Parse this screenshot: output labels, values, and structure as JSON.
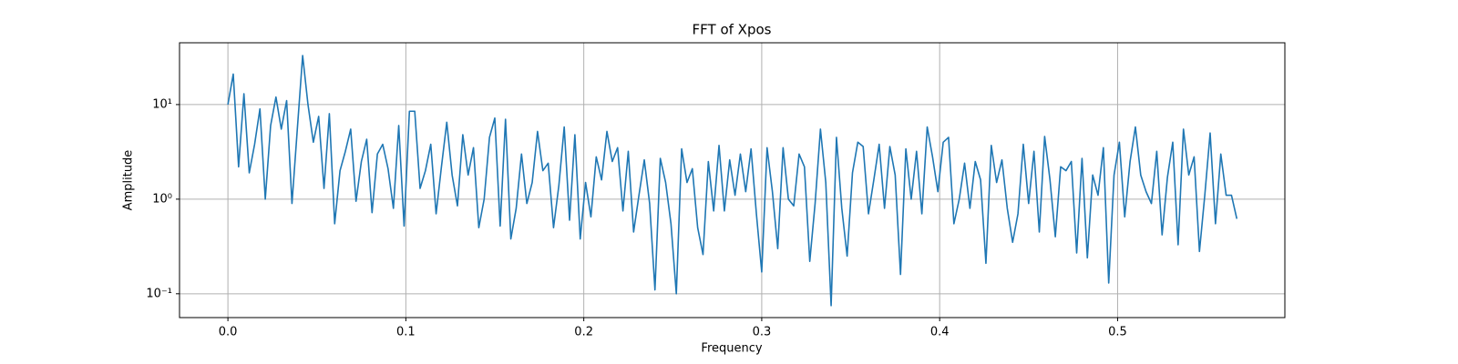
{
  "chart_data": {
    "type": "line",
    "title": "FFT of Xpos",
    "xlabel": "Frequency",
    "ylabel": "Amplitude",
    "color": "#1f77b4",
    "yscale": "log",
    "grid": true,
    "xlim": [
      -0.0272,
      0.594
    ],
    "ylim": [
      0.056,
      45
    ],
    "xticks": [
      {
        "value": 0,
        "label": "0.0"
      },
      0.1,
      0.2,
      0.3,
      0.4,
      0.5
    ],
    "yticks": [
      {
        "value": 0.1,
        "label": "10⁻¹"
      },
      {
        "value": 1,
        "label": "10⁰"
      },
      {
        "value": 10,
        "label": "10¹"
      }
    ],
    "x": [
      0,
      0.003,
      0.006,
      0.009,
      0.012,
      0.015,
      0.018,
      0.021,
      0.024,
      0.027,
      0.03,
      0.033,
      0.036,
      0.039,
      0.042,
      0.045,
      0.048,
      0.051,
      0.054,
      0.057,
      0.06,
      0.063,
      0.066,
      0.069,
      0.072,
      0.075,
      0.078,
      0.081,
      0.084,
      0.087,
      0.09,
      0.093,
      0.096,
      0.099,
      0.102,
      0.105,
      0.108,
      0.111,
      0.114,
      0.117,
      0.12,
      0.123,
      0.126,
      0.129,
      0.132,
      0.135,
      0.138,
      0.141,
      0.144,
      0.147,
      0.15,
      0.153,
      0.156,
      0.159,
      0.162,
      0.165,
      0.168,
      0.171,
      0.174,
      0.177,
      0.18,
      0.183,
      0.186,
      0.189,
      0.192,
      0.195,
      0.198,
      0.201,
      0.204,
      0.207,
      0.21,
      0.213,
      0.216,
      0.219,
      0.222,
      0.225,
      0.228,
      0.231,
      0.234,
      0.237,
      0.24,
      0.243,
      0.246,
      0.249,
      0.252,
      0.255,
      0.258,
      0.261,
      0.264,
      0.267,
      0.27,
      0.273,
      0.276,
      0.279,
      0.282,
      0.285,
      0.288,
      0.291,
      0.294,
      0.297,
      0.3,
      0.303,
      0.306,
      0.309,
      0.312,
      0.315,
      0.318,
      0.321,
      0.324,
      0.327,
      0.33,
      0.333,
      0.336,
      0.339,
      0.342,
      0.345,
      0.348,
      0.351,
      0.354,
      0.357,
      0.36,
      0.363,
      0.366,
      0.369,
      0.372,
      0.375,
      0.378,
      0.381,
      0.384,
      0.387,
      0.39,
      0.393,
      0.396,
      0.399,
      0.402,
      0.405,
      0.408,
      0.411,
      0.414,
      0.417,
      0.42,
      0.423,
      0.426,
      0.429,
      0.432,
      0.435,
      0.438,
      0.441,
      0.444,
      0.447,
      0.45,
      0.453,
      0.456,
      0.459,
      0.462,
      0.465,
      0.468,
      0.471,
      0.474,
      0.477,
      0.48,
      0.483,
      0.486,
      0.489,
      0.492,
      0.495,
      0.498,
      0.501,
      0.504,
      0.507,
      0.51,
      0.513,
      0.516,
      0.519,
      0.522,
      0.525,
      0.528,
      0.531,
      0.534,
      0.537,
      0.54,
      0.543,
      0.546,
      0.549,
      0.552,
      0.555,
      0.558,
      0.561,
      0.564,
      0.567
    ],
    "values": [
      10,
      21,
      2.2,
      13,
      1.9,
      3.8,
      9,
      1,
      6,
      12,
      5.5,
      11,
      0.9,
      5.5,
      33,
      10,
      4,
      7.5,
      1.3,
      8,
      0.55,
      2,
      3.2,
      5.5,
      0.95,
      2.5,
      4.3,
      0.72,
      3,
      3.8,
      2.1,
      0.8,
      6,
      0.52,
      8.5,
      8.5,
      1.3,
      2,
      3.8,
      0.7,
      2.2,
      6.5,
      1.8,
      0.85,
      4.8,
      1.8,
      3.5,
      0.5,
      1,
      4.5,
      7.2,
      0.52,
      7,
      0.38,
      0.8,
      3,
      0.9,
      1.5,
      5.2,
      2,
      2.4,
      0.5,
      1.4,
      5.8,
      0.6,
      4.8,
      0.38,
      1.5,
      0.65,
      2.8,
      1.6,
      5.2,
      2.5,
      3.5,
      0.75,
      3.2,
      0.45,
      1.1,
      2.6,
      0.9,
      0.11,
      2.7,
      1.5,
      0.55,
      0.1,
      3.4,
      1.5,
      2.1,
      0.5,
      0.26,
      2.5,
      0.75,
      3.7,
      0.75,
      2.6,
      1.1,
      3,
      1.2,
      3.4,
      0.7,
      0.17,
      3.5,
      1.2,
      0.3,
      3.5,
      1,
      0.85,
      3,
      2.2,
      0.22,
      0.9,
      5.5,
      1.5,
      0.075,
      4.5,
      0.8,
      0.25,
      1.9,
      4,
      3.6,
      0.7,
      1.6,
      3.8,
      0.8,
      3.6,
      1.8,
      0.16,
      3.4,
      1,
      3.2,
      0.7,
      5.8,
      2.8,
      1.2,
      4,
      4.5,
      0.55,
      1,
      2.4,
      0.8,
      2.5,
      1.6,
      0.21,
      3.7,
      1.5,
      2.6,
      0.8,
      0.35,
      0.7,
      3.8,
      0.9,
      3.2,
      0.45,
      4.6,
      1.6,
      0.4,
      2.2,
      2,
      2.5,
      0.27,
      2.7,
      0.24,
      1.8,
      1.1,
      3.5,
      0.13,
      1.8,
      4,
      0.65,
      2.5,
      5.8,
      1.8,
      1.2,
      0.9,
      3.2,
      0.42,
      1.7,
      4,
      0.33,
      5.5,
      1.8,
      2.8,
      0.28,
      1.1,
      5,
      0.55,
      3,
      1.1,
      1.1,
      0.62
    ]
  }
}
